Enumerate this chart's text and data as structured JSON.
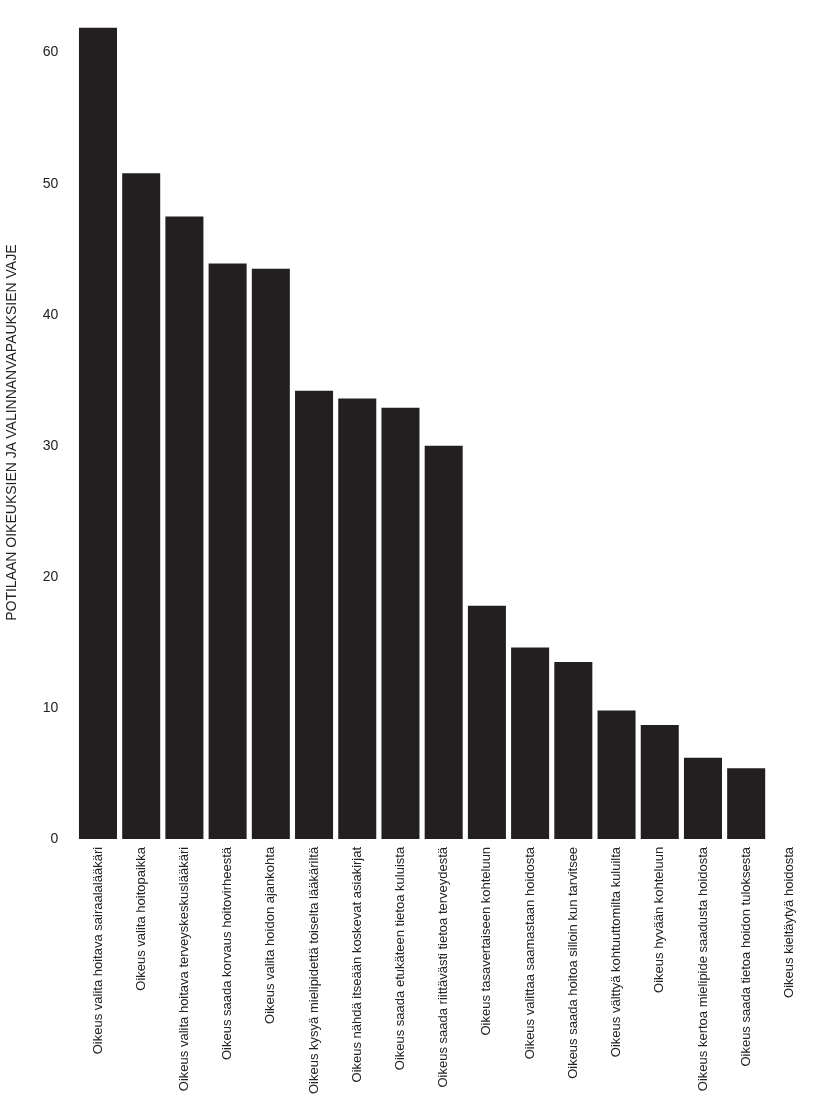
{
  "chart_data": {
    "type": "bar",
    "ylabel": "POTILAAN OIKEUKSIEN JA VALINNANVAPAUKSIEN VAJE",
    "categories": [
      "Oikeus valita hoitava sairaalalääkäri",
      "Oikeus valita hoitopaikka",
      "Oikeus valita hoitava terveyskeskuslääkäri",
      "Oikeus saada korvaus hoitovirheestä",
      "Oikeus valita hoidon ajankohta",
      "Oikeus kysyä mielipidettä toiselta lääkäriltä",
      "Oikeus nähdä itseään koskevat asiakirjat",
      "Oikeus saada etukäteen tietoa kuluista",
      "Oikeus saada riittävästi tietoa terveydestä",
      "Oikeus tasavertaiseen kohteluun",
      "Oikeus valittaa saamastaan hoidosta",
      "Oikeus saada hoitoa silloin kun tarvitsee",
      "Oikeus välttyä kohtuuttomilta kuluilta",
      "Oikeus hyvään kohteluun",
      "Oikeus kertoa mielipide saadusta hoidosta",
      "Oikeus saada tietoa hoidon tuloksesta",
      "Oikeus kieltäytyä hoidosta"
    ],
    "values": [
      61.9,
      50.8,
      47.5,
      43.9,
      43.5,
      34.2,
      33.6,
      32.9,
      30.0,
      17.8,
      14.6,
      13.5,
      9.8,
      8.7,
      6.2,
      5.4,
      0
    ],
    "color": "#231f20",
    "ylim": [
      0,
      62
    ],
    "yticks": [
      0,
      10,
      20,
      30,
      40,
      50,
      60
    ],
    "grid": false,
    "legend": false
  }
}
